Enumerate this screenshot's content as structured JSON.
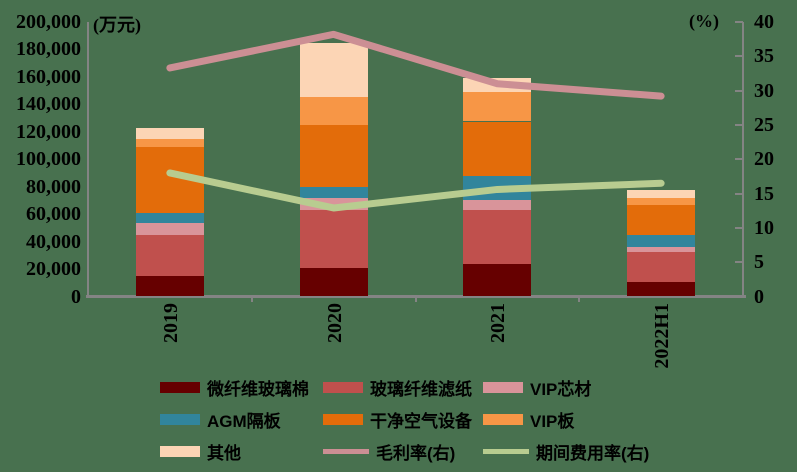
{
  "chart_data": {
    "type": "bar",
    "subtype": "stacked-bars-with-lines-dual-axis",
    "categories": [
      "2019",
      "2020",
      "2021",
      "2022H1"
    ],
    "bar_value_unit": "万元",
    "series": [
      {
        "name": "微纤维玻璃棉",
        "color": "#660000",
        "values": [
          15000,
          20500,
          24000,
          10500
        ]
      },
      {
        "name": "玻璃纤维滤纸",
        "color": "#C0504D",
        "values": [
          30000,
          42500,
          39000,
          22000
        ]
      },
      {
        "name": "VIP芯材",
        "color": "#D9949A",
        "values": [
          8500,
          8500,
          7500,
          3700
        ]
      },
      {
        "name": "AGM隔板",
        "color": "#31859C",
        "values": [
          7500,
          8500,
          17000,
          8700
        ]
      },
      {
        "name": "干净空气设备",
        "color": "#E36C0A",
        "values": [
          48000,
          45000,
          40000,
          21500
        ]
      },
      {
        "name": "VIP板",
        "color": "#F79646",
        "values": [
          6000,
          20000,
          21500,
          5600
        ]
      },
      {
        "name": "其他",
        "color": "#FCD5B5",
        "values": [
          8000,
          40000,
          10000,
          5300
        ]
      }
    ],
    "line_series": [
      {
        "name": "毛利率(右)",
        "color": "#CC8F94",
        "axis": "right",
        "values": [
          33.3,
          38.2,
          31.0,
          29.2
        ]
      },
      {
        "name": "期间费用率(右)",
        "color": "#B8CC90",
        "axis": "right",
        "values": [
          18.0,
          12.9,
          15.6,
          16.5
        ]
      }
    ],
    "left_axis": {
      "label": "(万元)",
      "min": 0,
      "max": 200000,
      "step": 20000,
      "tick_labels": [
        "0",
        "20,000",
        "40,000",
        "60,000",
        "80,000",
        "100,000",
        "120,000",
        "140,000",
        "160,000",
        "180,000",
        "200,000"
      ]
    },
    "right_axis": {
      "label": "(%)",
      "min": 0,
      "max": 40,
      "step": 5,
      "tick_labels": [
        "0",
        "5",
        "10",
        "15",
        "20",
        "25",
        "30",
        "35",
        "40"
      ]
    },
    "grid": false,
    "legend_position": "bottom"
  },
  "legend": {
    "items": [
      {
        "label": "微纤维玻璃棉",
        "color": "#660000",
        "swatch": "bar"
      },
      {
        "label": "玻璃纤维滤纸",
        "color": "#C0504D",
        "swatch": "bar"
      },
      {
        "label": "VIP芯材",
        "color": "#D9949A",
        "swatch": "bar"
      },
      {
        "label": "AGM隔板",
        "color": "#31859C",
        "swatch": "bar"
      },
      {
        "label": "干净空气设备",
        "color": "#E36C0A",
        "swatch": "bar"
      },
      {
        "label": "VIP板",
        "color": "#F79646",
        "swatch": "bar"
      },
      {
        "label": "其他",
        "color": "#FCD5B5",
        "swatch": "bar"
      },
      {
        "label": "毛利率(右)",
        "color": "#CC8F94",
        "swatch": "line"
      },
      {
        "label": "期间费用率(右)",
        "color": "#B8CC90",
        "swatch": "line"
      }
    ]
  },
  "colors": {
    "background": "#48714F",
    "axis": "#848484",
    "text": "#000000"
  }
}
